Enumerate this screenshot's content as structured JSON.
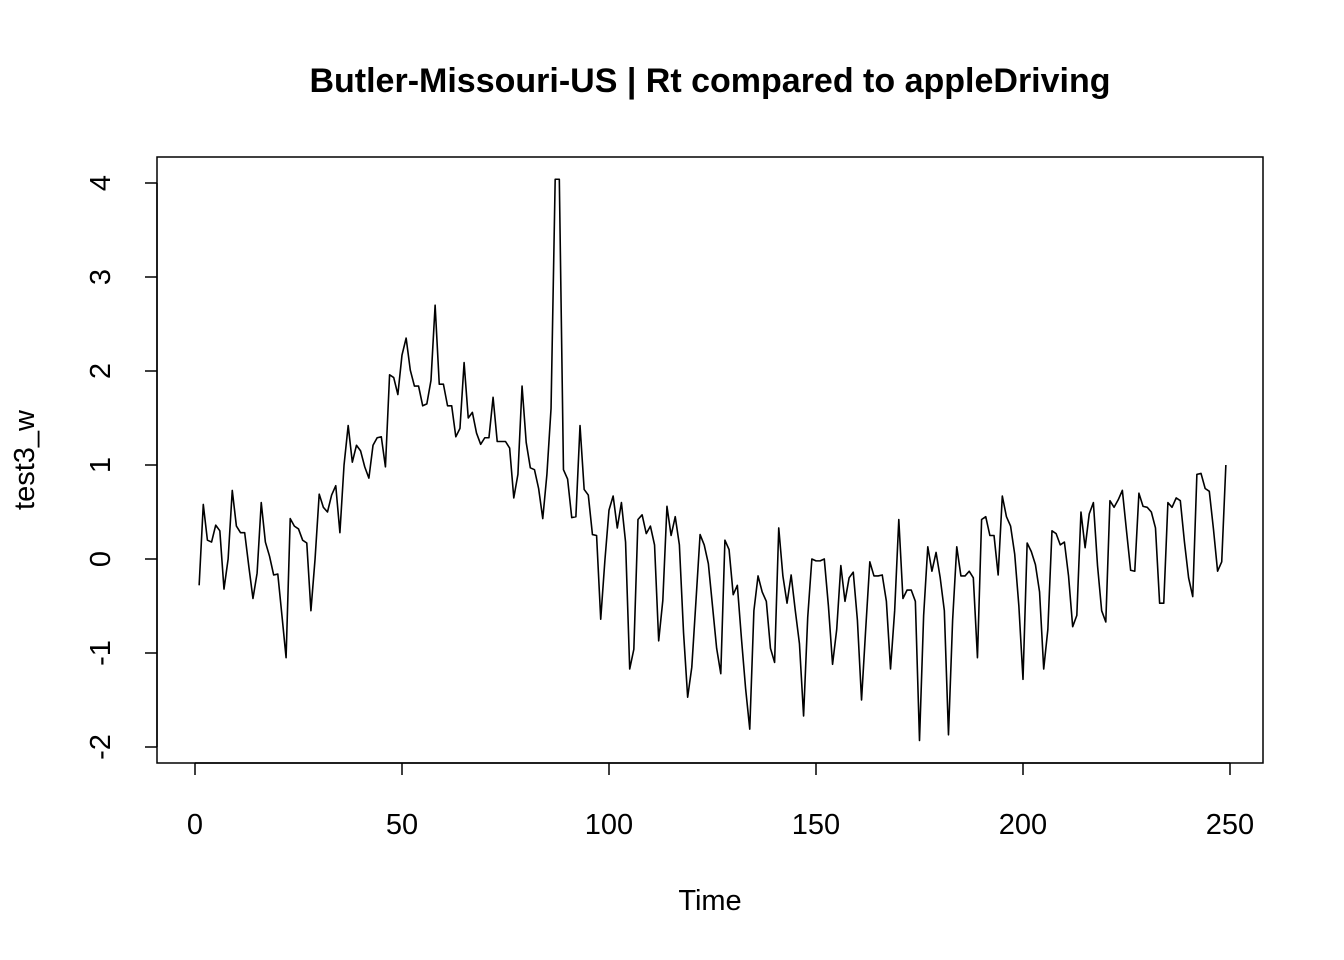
{
  "chart_data": {
    "type": "line",
    "title": "Butler-Missouri-US | Rt compared to appleDriving",
    "xlabel": "Time",
    "ylabel": "test3_w",
    "xlim": [
      1,
      248
    ],
    "ylim": [
      -2,
      4
    ],
    "x_ticks": [
      0,
      50,
      100,
      150,
      200,
      250
    ],
    "x_tick_labels": [
      "0",
      "50",
      "100",
      "150",
      "200",
      "250"
    ],
    "y_ticks": [
      -2,
      -1,
      0,
      1,
      2,
      3,
      4
    ],
    "y_tick_labels": [
      "-2",
      "-1",
      "0",
      "1",
      "2",
      "3",
      "4"
    ],
    "grid": false,
    "line_color": "#000000",
    "x_start": 1,
    "x_step": 1,
    "values": [
      -0.28,
      0.58,
      0.2,
      0.18,
      0.36,
      0.3,
      -0.32,
      0.0,
      0.73,
      0.35,
      0.28,
      0.28,
      -0.08,
      -0.42,
      -0.15,
      0.6,
      0.18,
      0.03,
      -0.17,
      -0.16,
      -0.6,
      -1.05,
      0.43,
      0.35,
      0.32,
      0.2,
      0.17,
      -0.55,
      0.0,
      0.69,
      0.55,
      0.5,
      0.68,
      0.78,
      0.28,
      1.0,
      1.42,
      1.03,
      1.21,
      1.15,
      0.98,
      0.86,
      1.21,
      1.29,
      1.3,
      0.98,
      1.96,
      1.93,
      1.75,
      2.17,
      2.35,
      2.01,
      1.84,
      1.84,
      1.63,
      1.65,
      1.9,
      2.7,
      1.86,
      1.86,
      1.63,
      1.63,
      1.3,
      1.39,
      2.09,
      1.5,
      1.56,
      1.34,
      1.22,
      1.29,
      1.29,
      1.72,
      1.25,
      1.25,
      1.25,
      1.18,
      0.65,
      0.9,
      1.84,
      1.24,
      0.97,
      0.95,
      0.75,
      0.43,
      0.9,
      1.6,
      4.04,
      4.04,
      0.95,
      0.85,
      0.44,
      0.45,
      1.42,
      0.74,
      0.68,
      0.26,
      0.25,
      -0.64,
      -0.02,
      0.52,
      0.67,
      0.33,
      0.6,
      0.18,
      -1.17,
      -0.96,
      0.42,
      0.47,
      0.27,
      0.35,
      0.15,
      -0.87,
      -0.44,
      0.56,
      0.25,
      0.45,
      0.15,
      -0.78,
      -1.47,
      -1.15,
      -0.45,
      0.26,
      0.15,
      -0.05,
      -0.5,
      -0.95,
      -1.22,
      0.2,
      0.1,
      -0.38,
      -0.28,
      -0.85,
      -1.38,
      -1.81,
      -0.55,
      -0.18,
      -0.35,
      -0.45,
      -0.95,
      -1.1,
      0.33,
      -0.18,
      -0.47,
      -0.17,
      -0.55,
      -0.9,
      -1.67,
      -0.62,
      0.0,
      -0.02,
      -0.02,
      0.0,
      -0.5,
      -1.12,
      -0.75,
      -0.07,
      -0.45,
      -0.2,
      -0.14,
      -0.65,
      -1.5,
      -0.75,
      -0.03,
      -0.18,
      -0.18,
      -0.17,
      -0.45,
      -1.17,
      -0.55,
      0.42,
      -0.42,
      -0.33,
      -0.33,
      -0.45,
      -1.93,
      -0.6,
      0.13,
      -0.13,
      0.07,
      -0.2,
      -0.55,
      -1.87,
      -0.65,
      0.13,
      -0.18,
      -0.18,
      -0.13,
      -0.2,
      -1.05,
      0.42,
      0.45,
      0.25,
      0.25,
      -0.17,
      0.67,
      0.45,
      0.35,
      0.05,
      -0.5,
      -1.28,
      0.17,
      0.08,
      -0.06,
      -0.35,
      -1.17,
      -0.75,
      0.3,
      0.27,
      0.15,
      0.18,
      -0.18,
      -0.72,
      -0.6,
      0.5,
      0.12,
      0.48,
      0.6,
      -0.07,
      -0.55,
      -0.67,
      0.62,
      0.55,
      0.63,
      0.73,
      0.3,
      -0.12,
      -0.13,
      0.7,
      0.56,
      0.55,
      0.5,
      0.33,
      -0.47,
      -0.47,
      0.6,
      0.55,
      0.65,
      0.62,
      0.18,
      -0.2,
      -0.4,
      0.9,
      0.91,
      0.75,
      0.72,
      0.32,
      -0.13,
      -0.03,
      1.0
    ]
  }
}
